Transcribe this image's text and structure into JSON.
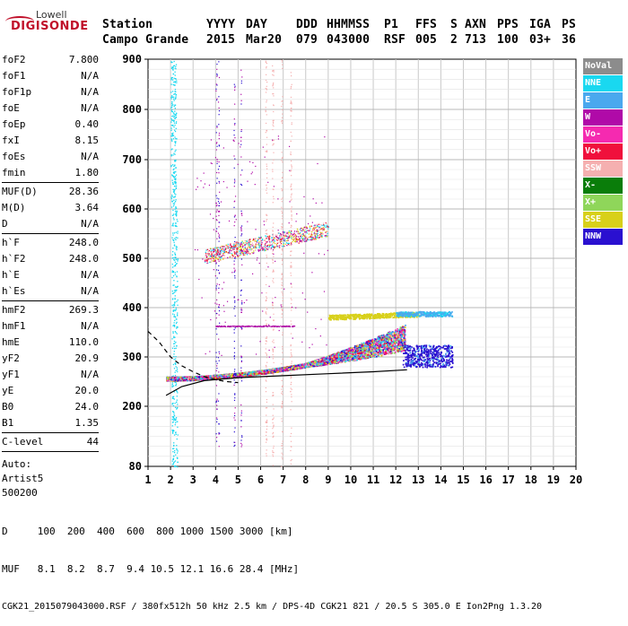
{
  "logo": {
    "line1": "Lowell",
    "line2": "DIGISONDE"
  },
  "header": {
    "row1": [
      "Station",
      "YYYY",
      "DAY",
      "DDD",
      "HHMMSS",
      "P1",
      "FFS",
      "S",
      "AXN",
      "PPS",
      "IGA",
      "PS"
    ],
    "row2": [
      "Campo Grande",
      "2015",
      "Mar20",
      "079",
      "043000",
      "RSF",
      "005",
      "2",
      "713",
      "100",
      "03+",
      "36"
    ]
  },
  "parameters": [
    {
      "name": "foF2",
      "value": "7.800"
    },
    {
      "name": "foF1",
      "value": "N/A"
    },
    {
      "name": "foF1p",
      "value": "N/A"
    },
    {
      "name": "foE",
      "value": "N/A"
    },
    {
      "name": "foEp",
      "value": "0.40"
    },
    {
      "name": "fxI",
      "value": "8.15"
    },
    {
      "name": "foEs",
      "value": "N/A"
    },
    {
      "name": "fmin",
      "value": "1.80"
    },
    {
      "sep": true
    },
    {
      "name": "MUF(D)",
      "value": "28.36"
    },
    {
      "name": "M(D)",
      "value": "3.64"
    },
    {
      "name": "D",
      "value": "N/A"
    },
    {
      "sep": true
    },
    {
      "name": "h`F",
      "value": "248.0"
    },
    {
      "name": "h`F2",
      "value": "248.0"
    },
    {
      "name": "h`E",
      "value": "N/A"
    },
    {
      "name": "h`Es",
      "value": "N/A"
    },
    {
      "sep": true
    },
    {
      "name": "hmF2",
      "value": "269.3"
    },
    {
      "name": "hmF1",
      "value": "N/A"
    },
    {
      "name": "hmE",
      "value": "110.0"
    },
    {
      "name": "yF2",
      "value": "20.9"
    },
    {
      "name": "yF1",
      "value": "N/A"
    },
    {
      "name": "yE",
      "value": "20.0"
    },
    {
      "name": "B0",
      "value": "24.0"
    },
    {
      "name": "B1",
      "value": "1.35"
    },
    {
      "sep": true
    },
    {
      "name": "C-level",
      "value": "44"
    },
    {
      "sep": true
    }
  ],
  "auto_block": [
    "Auto:",
    "Artist5",
    "500200"
  ],
  "legend": [
    {
      "label": "NoVal",
      "color": "#8c8c8c"
    },
    {
      "label": "NNE",
      "color": "#19d8f0"
    },
    {
      "label": "E",
      "color": "#4aa8ee"
    },
    {
      "label": "W",
      "color": "#b00aa8"
    },
    {
      "label": "Vo-",
      "color": "#f52ab0"
    },
    {
      "label": "Vo+",
      "color": "#f0103c"
    },
    {
      "label": "SSW",
      "color": "#f5b0b0"
    },
    {
      "label": "X-",
      "color": "#0a7d0a"
    },
    {
      "label": "X+",
      "color": "#8fd65a"
    },
    {
      "label": "SSE",
      "color": "#d8d01a"
    },
    {
      "label": "NNW",
      "color": "#2a10d0"
    }
  ],
  "bottom": {
    "d_row": "D     100  200  400  600  800 1000 1500 3000 [km]",
    "muf_row": "MUF   8.1  8.2  8.7  9.4 10.5 12.1 16.6 28.4 [MHz]",
    "footer": "CGK21_2015079043000.RSF / 380fx512h 50 kHz 2.5 km / DPS-4D CGK21 821 / 20.5 S 305.0 E Ion2Png 1.3.20"
  },
  "chart_data": {
    "type": "scatter",
    "xlim": [
      1,
      20
    ],
    "ylim": [
      80,
      900
    ],
    "x_ticks": [
      1,
      2,
      3,
      4,
      5,
      6,
      7,
      8,
      9,
      10,
      11,
      12,
      13,
      14,
      15,
      16,
      17,
      18,
      19,
      20
    ],
    "y_ticks": [
      80,
      200,
      300,
      400,
      500,
      600,
      700,
      800,
      900
    ],
    "grid": true,
    "legend_position": "right",
    "profile_curve": {
      "style": "dashed",
      "points": [
        [
          1.0,
          352
        ],
        [
          1.5,
          330
        ],
        [
          2.0,
          300
        ],
        [
          2.5,
          282
        ],
        [
          3.0,
          270
        ],
        [
          3.5,
          260
        ],
        [
          4.0,
          254
        ],
        [
          4.5,
          250
        ],
        [
          5.0,
          248
        ]
      ]
    },
    "profile_curve_lower": {
      "style": "solid",
      "points": [
        [
          1.8,
          222
        ],
        [
          2.5,
          240
        ],
        [
          3.5,
          252
        ],
        [
          5,
          258
        ],
        [
          7,
          262
        ],
        [
          9,
          266
        ],
        [
          11,
          270
        ],
        [
          12.5,
          274
        ]
      ]
    },
    "traces": [
      {
        "mode": "NNE",
        "color": "#19d8f0",
        "note": "vertical streak",
        "x": [
          2.0,
          2.3
        ],
        "y": [
          80,
          900
        ]
      },
      {
        "mode": "Vo+",
        "color": "#f0103c",
        "note": "main F trace",
        "x": [
          1.8,
          12.0
        ],
        "y": [
          255,
          345
        ]
      },
      {
        "mode": "NNW",
        "color": "#2a10d0",
        "note": "main F trace",
        "x": [
          1.8,
          14.5
        ],
        "y": [
          255,
          360
        ]
      },
      {
        "mode": "SSE",
        "color": "#d8d01a",
        "note": "band",
        "x": [
          9.0,
          13.0
        ],
        "y": [
          378,
          388
        ]
      },
      {
        "mode": "E",
        "color": "#4aa8ee",
        "note": "band",
        "x": [
          12.0,
          14.5
        ],
        "y": [
          380,
          395
        ]
      },
      {
        "mode": "W",
        "color": "#b00aa8",
        "note": "second hop",
        "x": [
          3.5,
          9.0
        ],
        "y": [
          500,
          580
        ]
      },
      {
        "mode": "SSW",
        "color": "#f5b0b0",
        "note": "vertical streaks",
        "x": [
          6.0,
          7.5
        ],
        "y": [
          80,
          900
        ]
      }
    ]
  }
}
